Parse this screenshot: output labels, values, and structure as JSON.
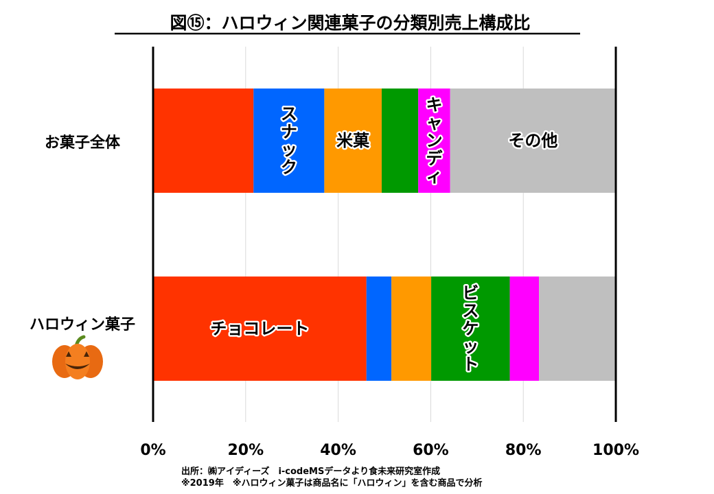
{
  "title": "図⑮：ハロウィン関連菓子の分類別売上構成比",
  "chart_data": {
    "type": "bar",
    "orientation": "horizontal",
    "stacked": true,
    "title": "図⑮：ハロウィン関連菓子の分類別売上構成比",
    "categories": [
      "お菓子全体",
      "ハロウィン菓子"
    ],
    "xlim": [
      0,
      100
    ],
    "xticks": [
      "0%",
      "20%",
      "40%",
      "60%",
      "80%",
      "100%"
    ],
    "grid": true,
    "legend": "none",
    "series": [
      {
        "name": "チョコレート",
        "color": "#ff3300",
        "values": [
          21.7,
          46.1
        ]
      },
      {
        "name": "スナック",
        "color": "#0066ff",
        "values": [
          15.3,
          5.4
        ]
      },
      {
        "name": "米菓",
        "color": "#ff9900",
        "values": [
          12.4,
          8.6
        ]
      },
      {
        "name": "ビスケット",
        "color": "#009900",
        "values": [
          7.9,
          17.0
        ]
      },
      {
        "name": "キャンディ",
        "color": "#ff00ff",
        "values": [
          6.9,
          6.3
        ]
      },
      {
        "name": "その他",
        "color": "#bfbfbf",
        "values": [
          35.8,
          16.6
        ]
      }
    ],
    "segment_labels": [
      {
        "bar": 0,
        "series": 1,
        "text": "スナック",
        "vertical": true
      },
      {
        "bar": 0,
        "series": 2,
        "text": "米菓",
        "vertical": false
      },
      {
        "bar": 0,
        "series": 4,
        "text": "キャンディ",
        "vertical": true
      },
      {
        "bar": 0,
        "series": 5,
        "text": "その他",
        "vertical": false
      },
      {
        "bar": 1,
        "series": 0,
        "text": "チョコレート",
        "vertical": false
      },
      {
        "bar": 1,
        "series": 3,
        "text": "ビスケット",
        "vertical": true
      }
    ]
  },
  "source_line1": "出所：㈱アイディーズ　i-codeMSデータより食未来研究室作成",
  "source_line2": "※2019年　※ハロウィン菓子は商品名に「ハロウィン」を含む商品で分析",
  "icons": {
    "pumpkin": "pumpkin-icon"
  }
}
